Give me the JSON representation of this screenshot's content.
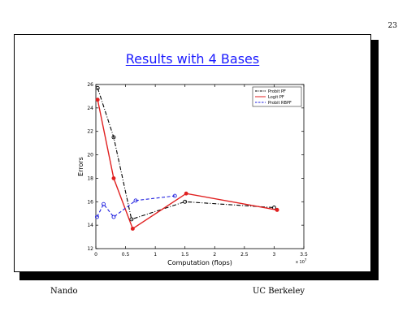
{
  "page_number": "23",
  "slide_title": "Results with 4 Bases",
  "footer": {
    "left": "Nando",
    "right": "UC Berkeley"
  },
  "chart_data": {
    "type": "line",
    "title": "",
    "xlabel": "Computation (flops)",
    "ylabel": "Errors",
    "x_multiplier_label": "x 10",
    "x_multiplier_exponent": "7",
    "xlim": [
      0,
      3.5
    ],
    "ylim": [
      12,
      26
    ],
    "xticks": [
      0,
      0.5,
      1,
      1.5,
      2,
      2.5,
      3,
      3.5
    ],
    "xtick_labels": [
      "0",
      "0.5",
      "1",
      "1.5",
      "2",
      "2.5",
      "3",
      "3.5"
    ],
    "yticks": [
      12,
      14,
      16,
      18,
      20,
      22,
      24,
      26
    ],
    "legend_position": "top-right",
    "grid": false,
    "series": [
      {
        "name": "Probit PF",
        "color": "#000000",
        "dash": "dash-dot",
        "x": [
          0.03,
          0.3,
          0.6,
          1.5,
          3.0
        ],
        "y": [
          25.7,
          21.5,
          14.5,
          16.0,
          15.5
        ]
      },
      {
        "name": "Logit PF",
        "color": "#e02020",
        "dash": "solid",
        "x": [
          0.03,
          0.3,
          0.62,
          1.52,
          3.05
        ],
        "y": [
          24.7,
          18.0,
          13.7,
          16.7,
          15.3
        ]
      },
      {
        "name": "Probit RBPF",
        "color": "#2020e0",
        "dash": "dashed",
        "x": [
          0.02,
          0.13,
          0.3,
          0.67,
          1.33
        ],
        "y": [
          14.7,
          15.8,
          14.7,
          16.1,
          16.5
        ]
      }
    ]
  }
}
